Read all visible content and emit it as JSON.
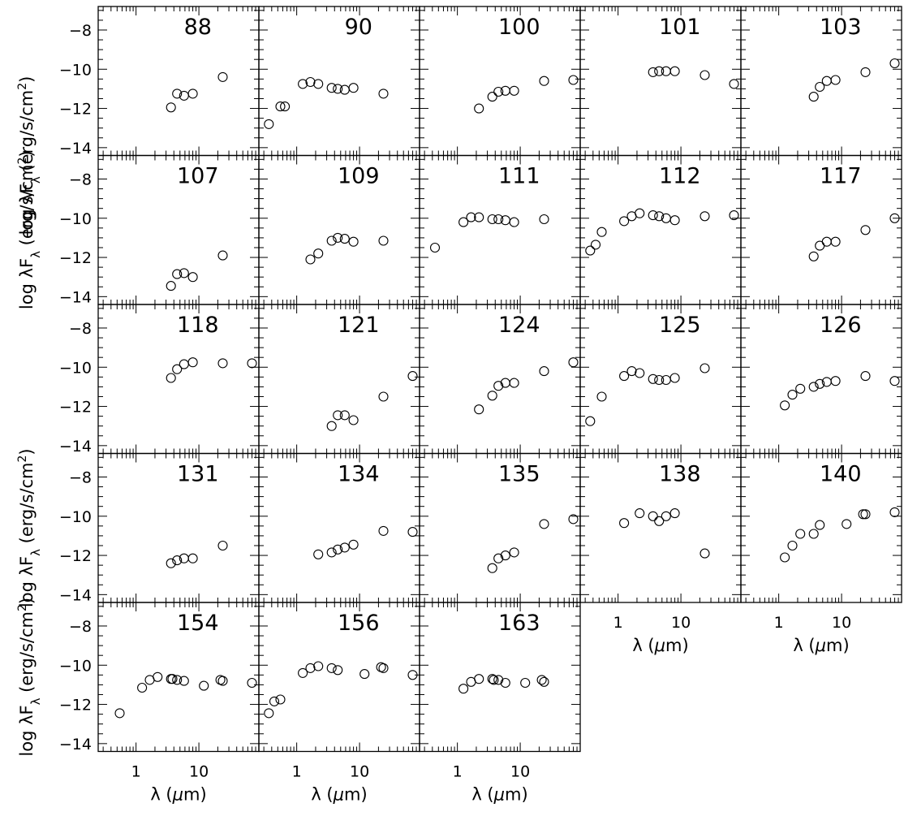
{
  "chart_data": {
    "type": "scatter",
    "layout": "small-multiples grid, 5 columns x 5 rows",
    "xscale": "log",
    "xlim": [
      0.25,
      90
    ],
    "ylim": [
      -14.4,
      -6.8
    ],
    "ylabel": "log λF_λ (erg/s/cm²)",
    "ylabel_parts": {
      "pre": "log λF",
      "sub": "λ",
      "post": " (erg/s/cm",
      "sup": "2",
      "end": ")"
    },
    "xlabel": "λ (μm)",
    "xlabel_parts": {
      "pre": "λ (",
      "mu": "μ",
      "post": "m)"
    },
    "yticks": [
      -8,
      -10,
      -12,
      -14
    ],
    "ytick_labels": [
      "−8",
      "−10",
      "−12",
      "−14"
    ],
    "xticks": [
      1,
      10
    ],
    "xtick_labels": [
      "1",
      "10"
    ],
    "marker": "open circle",
    "panels": [
      {
        "label": "88",
        "x": [
          3.6,
          4.5,
          5.8,
          8.0,
          24
        ],
        "y": [
          -11.95,
          -11.25,
          -11.35,
          -11.25,
          -10.4
        ]
      },
      {
        "label": "90",
        "x": [
          0.36,
          0.55,
          0.65,
          1.25,
          1.65,
          2.2,
          3.6,
          4.5,
          5.8,
          8.0,
          24
        ],
        "y": [
          -12.8,
          -11.9,
          -11.9,
          -10.75,
          -10.65,
          -10.75,
          -10.95,
          -11.0,
          -11.05,
          -10.95,
          -11.25
        ]
      },
      {
        "label": "100",
        "x": [
          2.2,
          3.6,
          4.5,
          5.8,
          8.0,
          24,
          70
        ],
        "y": [
          -12.0,
          -11.4,
          -11.15,
          -11.1,
          -11.1,
          -10.6,
          -10.55
        ]
      },
      {
        "label": "101",
        "x": [
          3.6,
          4.5,
          5.8,
          8.0,
          24,
          70
        ],
        "y": [
          -10.15,
          -10.1,
          -10.1,
          -10.1,
          -10.3,
          -10.75
        ]
      },
      {
        "label": "103",
        "x": [
          3.6,
          4.5,
          5.8,
          8.0,
          24,
          70
        ],
        "y": [
          -11.4,
          -10.9,
          -10.6,
          -10.55,
          -10.15,
          -9.7
        ]
      },
      {
        "label": "107",
        "x": [
          3.6,
          4.5,
          5.8,
          8.0,
          24
        ],
        "y": [
          -13.45,
          -12.85,
          -12.8,
          -13.0,
          -11.9
        ]
      },
      {
        "label": "109",
        "x": [
          1.65,
          2.2,
          3.6,
          4.5,
          5.8,
          8.0,
          24
        ],
        "y": [
          -12.1,
          -11.8,
          -11.15,
          -11.0,
          -11.05,
          -11.2,
          -11.15
        ]
      },
      {
        "label": "111",
        "x": [
          0.44,
          1.25,
          1.65,
          2.2,
          3.6,
          4.5,
          5.8,
          8.0,
          24
        ],
        "y": [
          -11.5,
          -10.2,
          -9.95,
          -9.95,
          -10.05,
          -10.05,
          -10.1,
          -10.2,
          -10.05
        ]
      },
      {
        "label": "112",
        "x": [
          0.36,
          0.44,
          0.55,
          1.25,
          1.65,
          2.2,
          3.6,
          4.5,
          5.8,
          8.0,
          24,
          70
        ],
        "y": [
          -11.65,
          -11.35,
          -10.7,
          -10.15,
          -9.9,
          -9.75,
          -9.85,
          -9.9,
          -10.0,
          -10.1,
          -9.9,
          -9.85
        ]
      },
      {
        "label": "117",
        "x": [
          3.6,
          4.5,
          5.8,
          8.0,
          24,
          70
        ],
        "y": [
          -11.95,
          -11.4,
          -11.2,
          -11.2,
          -10.6,
          -10.0
        ]
      },
      {
        "label": "118",
        "x": [
          3.6,
          4.5,
          5.8,
          8.0,
          24,
          70
        ],
        "y": [
          -10.55,
          -10.1,
          -9.85,
          -9.75,
          -9.8,
          -9.8
        ]
      },
      {
        "label": "121",
        "x": [
          3.6,
          4.5,
          5.8,
          8.0,
          24,
          70
        ],
        "y": [
          -13.0,
          -12.45,
          -12.45,
          -12.7,
          -11.5,
          -10.45
        ]
      },
      {
        "label": "124",
        "x": [
          2.2,
          3.6,
          4.5,
          5.8,
          8.0,
          24,
          70
        ],
        "y": [
          -12.15,
          -11.45,
          -10.95,
          -10.8,
          -10.8,
          -10.2,
          -9.75
        ]
      },
      {
        "label": "125",
        "x": [
          0.36,
          0.55,
          1.25,
          1.65,
          2.2,
          3.6,
          4.5,
          5.8,
          8.0,
          24
        ],
        "y": [
          -12.75,
          -11.5,
          -10.45,
          -10.2,
          -10.3,
          -10.6,
          -10.65,
          -10.65,
          -10.55,
          -10.05
        ]
      },
      {
        "label": "126",
        "x": [
          1.25,
          1.65,
          2.2,
          3.6,
          4.5,
          5.8,
          8.0,
          24,
          70
        ],
        "y": [
          -11.95,
          -11.4,
          -11.1,
          -11.0,
          -10.85,
          -10.75,
          -10.7,
          -10.45,
          -10.7
        ]
      },
      {
        "label": "131",
        "x": [
          3.6,
          4.5,
          5.8,
          8.0,
          24
        ],
        "y": [
          -12.4,
          -12.25,
          -12.15,
          -12.15,
          -11.5
        ]
      },
      {
        "label": "134",
        "x": [
          2.2,
          3.6,
          4.5,
          5.8,
          8.0,
          24,
          70
        ],
        "y": [
          -11.95,
          -11.85,
          -11.7,
          -11.6,
          -11.45,
          -10.75,
          -10.8
        ]
      },
      {
        "label": "135",
        "x": [
          3.6,
          4.5,
          5.8,
          8.0,
          24,
          70
        ],
        "y": [
          -12.65,
          -12.15,
          -12.0,
          -11.85,
          -10.4,
          -10.15
        ]
      },
      {
        "label": "138",
        "x": [
          1.25,
          2.2,
          3.6,
          4.5,
          5.8,
          8.0,
          24
        ],
        "y": [
          -10.35,
          -9.85,
          -10.0,
          -10.25,
          -10.0,
          -9.85,
          -11.9
        ]
      },
      {
        "label": "140",
        "x": [
          1.25,
          1.65,
          2.2,
          3.6,
          4.5,
          12,
          22,
          24,
          70
        ],
        "y": [
          -12.1,
          -11.5,
          -10.9,
          -10.9,
          -10.45,
          -10.4,
          -9.9,
          -9.9,
          -9.8
        ]
      },
      {
        "label": "154",
        "x": [
          0.55,
          1.25,
          1.65,
          2.2,
          3.6,
          3.8,
          4.5,
          5.8,
          12,
          22,
          24,
          70
        ],
        "y": [
          -12.45,
          -11.15,
          -10.75,
          -10.6,
          -10.7,
          -10.7,
          -10.75,
          -10.8,
          -11.05,
          -10.75,
          -10.8,
          -10.9
        ]
      },
      {
        "label": "156",
        "x": [
          0.36,
          0.44,
          0.55,
          1.25,
          1.65,
          2.2,
          3.6,
          4.5,
          12,
          22,
          24,
          70
        ],
        "y": [
          -12.45,
          -11.85,
          -11.75,
          -10.4,
          -10.15,
          -10.05,
          -10.15,
          -10.25,
          -10.45,
          -10.1,
          -10.15,
          -10.5
        ]
      },
      {
        "label": "163",
        "x": [
          1.25,
          1.65,
          2.2,
          3.6,
          3.8,
          4.5,
          5.8,
          12,
          22,
          24
        ],
        "y": [
          -11.2,
          -10.85,
          -10.7,
          -10.7,
          -10.75,
          -10.75,
          -10.9,
          -10.9,
          -10.75,
          -10.85
        ]
      }
    ]
  }
}
